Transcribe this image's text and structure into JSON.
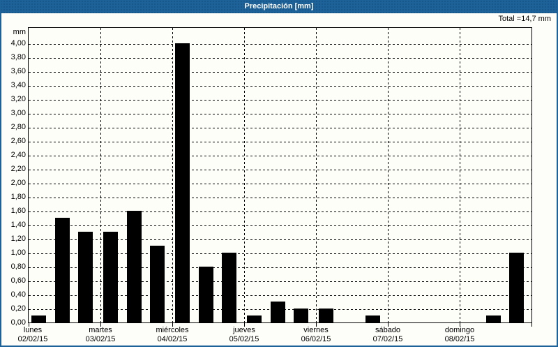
{
  "window": {
    "title": "Precipitación [mm]"
  },
  "chart_data": {
    "type": "bar",
    "title": "Precipitación [mm]",
    "total_label": "Total =14,7 mm",
    "total_mm": 14.7,
    "y_unit": "mm",
    "ylabel": "mm",
    "y_min": 0,
    "y_max_tick": 4.0,
    "y_tick_step": 0.2,
    "y_tick_labels": [
      "0,00",
      "0,20",
      "0,40",
      "0,60",
      "0,80",
      "1,00",
      "1,20",
      "1,40",
      "1,60",
      "1,80",
      "2,00",
      "2,20",
      "2,40",
      "2,60",
      "2,80",
      "3,00",
      "3,20",
      "3,40",
      "3,60",
      "3,80",
      "4,00"
    ],
    "grid": true,
    "bar_color": "#000000",
    "title_bar_color": "#1d6298",
    "window_border_color": "#1d6298",
    "days": [
      {
        "name": "lunes",
        "date": "02/02/15"
      },
      {
        "name": "martes",
        "date": "03/02/15"
      },
      {
        "name": "miércoles",
        "date": "04/02/15"
      },
      {
        "name": "jueves",
        "date": "05/02/15"
      },
      {
        "name": "viernes",
        "date": "06/02/15"
      },
      {
        "name": "sábado",
        "date": "07/02/15"
      },
      {
        "name": "domingo",
        "date": "08/02/15"
      }
    ],
    "slots_per_day": 3,
    "bars": [
      {
        "day": 0,
        "slot": 0,
        "value": 0.1
      },
      {
        "day": 0,
        "slot": 1,
        "value": 1.5
      },
      {
        "day": 0,
        "slot": 2,
        "value": 1.3
      },
      {
        "day": 1,
        "slot": 0,
        "value": 1.3
      },
      {
        "day": 1,
        "slot": 1,
        "value": 1.6
      },
      {
        "day": 1,
        "slot": 2,
        "value": 1.1
      },
      {
        "day": 2,
        "slot": 0,
        "value": 4.0
      },
      {
        "day": 2,
        "slot": 1,
        "value": 0.8
      },
      {
        "day": 2,
        "slot": 2,
        "value": 1.0
      },
      {
        "day": 3,
        "slot": 0,
        "value": 0.1
      },
      {
        "day": 3,
        "slot": 1,
        "value": 0.3
      },
      {
        "day": 3,
        "slot": 2,
        "value": 0.2
      },
      {
        "day": 4,
        "slot": 0,
        "value": 0.2
      },
      {
        "day": 4,
        "slot": 2,
        "value": 0.1
      },
      {
        "day": 6,
        "slot": 1,
        "value": 0.1
      },
      {
        "day": 6,
        "slot": 2,
        "value": 1.0
      }
    ]
  }
}
